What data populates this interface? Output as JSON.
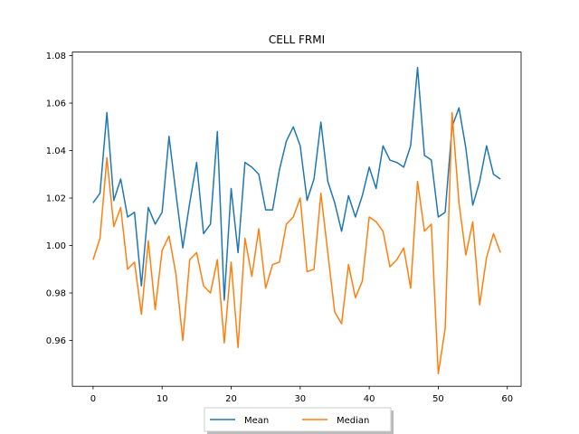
{
  "chart_data": {
    "type": "line",
    "title": "CELL FRMI",
    "xlabel": "",
    "ylabel": "",
    "xlim": [
      -3,
      62
    ],
    "ylim": [
      0.9407,
      1.0815
    ],
    "xticks": [
      0,
      10,
      20,
      30,
      40,
      50,
      60
    ],
    "yticks": [
      0.96,
      0.98,
      1.0,
      1.02,
      1.04,
      1.06,
      1.08
    ],
    "ytick_labels": [
      "0.96",
      "0.98",
      "1.00",
      "1.02",
      "1.04",
      "1.06",
      "1.08"
    ],
    "grid": false,
    "legend": {
      "placement": "bottom-center-outside",
      "columns": 2
    },
    "series": [
      {
        "name": "Mean",
        "color": "#1f77b4",
        "x": [
          0,
          1,
          2,
          3,
          4,
          5,
          6,
          7,
          8,
          9,
          10,
          11,
          12,
          13,
          14,
          15,
          16,
          17,
          18,
          19,
          20,
          21,
          22,
          23,
          24,
          25,
          26,
          27,
          28,
          29,
          30,
          31,
          32,
          33,
          34,
          35,
          36,
          37,
          38,
          39,
          40,
          41,
          42,
          43,
          44,
          45,
          46,
          47,
          48,
          49,
          50,
          51,
          52,
          53,
          54,
          55,
          56,
          57,
          58,
          59
        ],
        "values": [
          1.018,
          1.022,
          1.056,
          1.019,
          1.028,
          1.012,
          1.014,
          0.983,
          1.016,
          1.009,
          1.014,
          1.046,
          1.022,
          0.999,
          1.018,
          1.035,
          1.005,
          1.009,
          1.048,
          0.977,
          1.024,
          0.997,
          1.035,
          1.033,
          1.03,
          1.015,
          1.015,
          1.032,
          1.044,
          1.05,
          1.042,
          1.019,
          1.028,
          1.052,
          1.027,
          1.018,
          1.006,
          1.021,
          1.012,
          1.021,
          1.033,
          1.024,
          1.042,
          1.036,
          1.035,
          1.033,
          1.042,
          1.075,
          1.038,
          1.036,
          1.012,
          1.014,
          1.05,
          1.058,
          1.041,
          1.017,
          1.027,
          1.042,
          1.03,
          1.028
        ]
      },
      {
        "name": "Median",
        "color": "#ff7f0e",
        "x": [
          0,
          1,
          2,
          3,
          4,
          5,
          6,
          7,
          8,
          9,
          10,
          11,
          12,
          13,
          14,
          15,
          16,
          17,
          18,
          19,
          20,
          21,
          22,
          23,
          24,
          25,
          26,
          27,
          28,
          29,
          30,
          31,
          32,
          33,
          34,
          35,
          36,
          37,
          38,
          39,
          40,
          41,
          42,
          43,
          44,
          45,
          46,
          47,
          48,
          49,
          50,
          51,
          52,
          53,
          54,
          55,
          56,
          57,
          58,
          59
        ],
        "values": [
          0.994,
          1.003,
          1.037,
          1.008,
          1.016,
          0.99,
          0.993,
          0.971,
          1.002,
          0.973,
          0.998,
          1.004,
          0.988,
          0.96,
          0.994,
          0.997,
          0.983,
          0.98,
          0.994,
          0.959,
          0.993,
          0.957,
          1.003,
          0.987,
          1.007,
          0.982,
          0.992,
          0.993,
          1.009,
          1.012,
          1.02,
          0.989,
          0.99,
          1.022,
          0.997,
          0.972,
          0.967,
          0.992,
          0.978,
          0.985,
          1.012,
          1.01,
          1.006,
          0.991,
          0.994,
          0.999,
          0.982,
          1.027,
          1.006,
          1.009,
          0.946,
          0.965,
          1.056,
          1.018,
          0.996,
          1.01,
          0.975,
          0.995,
          1.005,
          0.997
        ]
      }
    ]
  }
}
